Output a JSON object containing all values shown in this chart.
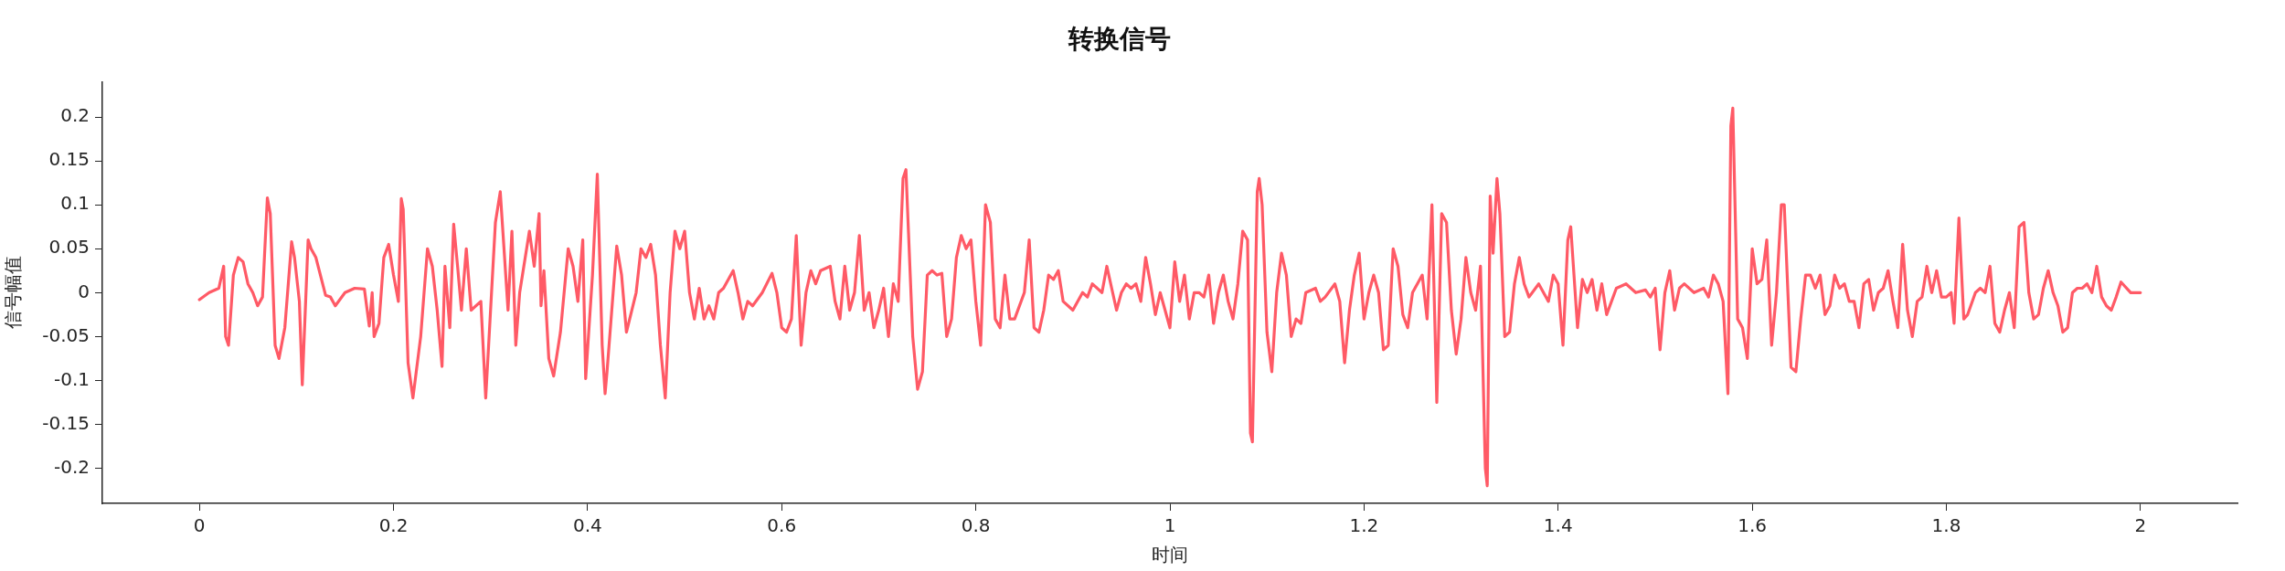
{
  "chart_data": {
    "type": "line",
    "title": "转换信号",
    "xlabel": "时间",
    "ylabel": "信号幅值",
    "xlim": [
      -0.1,
      2.1
    ],
    "xticks": [
      0,
      0.2,
      0.4,
      0.6,
      0.8,
      1,
      1.2,
      1.4,
      1.6,
      1.8,
      2
    ],
    "ylim": [
      -0.24,
      0.24
    ],
    "yticks": [
      -0.2,
      -0.15,
      -0.1,
      -0.05,
      0,
      0.05,
      0.1,
      0.15,
      0.2
    ],
    "grid": false,
    "legend": false,
    "marker": "none",
    "line_style": "solid",
    "series": [
      {
        "color": "#ff5a66",
        "x": [
          0,
          0.01,
          0.02,
          0.025,
          0.027,
          0.03,
          0.035,
          0.04,
          0.045,
          0.05,
          0.055,
          0.06,
          0.065,
          0.07,
          0.073,
          0.078,
          0.082,
          0.088,
          0.095,
          0.098,
          0.103,
          0.106,
          0.112,
          0.115,
          0.12,
          0.13,
          0.135,
          0.14,
          0.15,
          0.16,
          0.17,
          0.175,
          0.178,
          0.18,
          0.185,
          0.19,
          0.195,
          0.2,
          0.205,
          0.208,
          0.21,
          0.215,
          0.22,
          0.228,
          0.235,
          0.24,
          0.245,
          0.25,
          0.253,
          0.258,
          0.262,
          0.266,
          0.27,
          0.275,
          0.28,
          0.29,
          0.295,
          0.305,
          0.31,
          0.318,
          0.322,
          0.326,
          0.33,
          0.34,
          0.345,
          0.35,
          0.352,
          0.355,
          0.36,
          0.365,
          0.372,
          0.38,
          0.385,
          0.39,
          0.395,
          0.398,
          0.405,
          0.41,
          0.415,
          0.418,
          0.42,
          0.43,
          0.435,
          0.44,
          0.45,
          0.455,
          0.46,
          0.465,
          0.47,
          0.475,
          0.48,
          0.485,
          0.49,
          0.495,
          0.5,
          0.505,
          0.51,
          0.515,
          0.52,
          0.525,
          0.53,
          0.535,
          0.54,
          0.55,
          0.555,
          0.56,
          0.565,
          0.57,
          0.58,
          0.59,
          0.595,
          0.6,
          0.605,
          0.61,
          0.615,
          0.62,
          0.625,
          0.63,
          0.635,
          0.64,
          0.65,
          0.655,
          0.66,
          0.665,
          0.67,
          0.675,
          0.68,
          0.685,
          0.69,
          0.695,
          0.7,
          0.705,
          0.71,
          0.715,
          0.72,
          0.725,
          0.728,
          0.735,
          0.74,
          0.745,
          0.75,
          0.755,
          0.76,
          0.765,
          0.77,
          0.775,
          0.78,
          0.785,
          0.79,
          0.795,
          0.8,
          0.805,
          0.81,
          0.815,
          0.82,
          0.825,
          0.83,
          0.835,
          0.84,
          0.85,
          0.855,
          0.86,
          0.865,
          0.87,
          0.875,
          0.88,
          0.885,
          0.89,
          0.9,
          0.91,
          0.915,
          0.92,
          0.93,
          0.935,
          0.94,
          0.945,
          0.95,
          0.955,
          0.96,
          0.965,
          0.97,
          0.975,
          0.98,
          0.985,
          0.99,
          1,
          1.005,
          1.01,
          1.015,
          1.02,
          1.025,
          1.03,
          1.035,
          1.04,
          1.045,
          1.05,
          1.055,
          1.06,
          1.065,
          1.07,
          1.075,
          1.08,
          1.083,
          1.085,
          1.09,
          1.092,
          1.095,
          1.1,
          1.105,
          1.11,
          1.115,
          1.12,
          1.125,
          1.13,
          1.135,
          1.14,
          1.15,
          1.155,
          1.16,
          1.17,
          1.175,
          1.18,
          1.185,
          1.19,
          1.195,
          1.2,
          1.205,
          1.21,
          1.215,
          1.22,
          1.225,
          1.23,
          1.235,
          1.24,
          1.245,
          1.25,
          1.26,
          1.265,
          1.27,
          1.275,
          1.28,
          1.285,
          1.29,
          1.295,
          1.3,
          1.305,
          1.31,
          1.315,
          1.32,
          1.325,
          1.327,
          1.33,
          1.333,
          1.337,
          1.34,
          1.345,
          1.35,
          1.355,
          1.36,
          1.365,
          1.37,
          1.38,
          1.39,
          1.395,
          1.4,
          1.405,
          1.41,
          1.413,
          1.42,
          1.425,
          1.43,
          1.435,
          1.44,
          1.445,
          1.45,
          1.46,
          1.47,
          1.48,
          1.49,
          1.495,
          1.5,
          1.505,
          1.51,
          1.515,
          1.52,
          1.525,
          1.53,
          1.54,
          1.55,
          1.555,
          1.56,
          1.565,
          1.57,
          1.575,
          1.578,
          1.58,
          1.585,
          1.59,
          1.595,
          1.6,
          1.605,
          1.61,
          1.615,
          1.62,
          1.625,
          1.63,
          1.633,
          1.64,
          1.645,
          1.65,
          1.655,
          1.66,
          1.665,
          1.67,
          1.675,
          1.68,
          1.685,
          1.69,
          1.695,
          1.7,
          1.705,
          1.71,
          1.715,
          1.72,
          1.725,
          1.73,
          1.735,
          1.74,
          1.745,
          1.75,
          1.755,
          1.76,
          1.765,
          1.77,
          1.775,
          1.78,
          1.785,
          1.79,
          1.795,
          1.8,
          1.805,
          1.808,
          1.813,
          1.818,
          1.822,
          1.83,
          1.835,
          1.84,
          1.845,
          1.85,
          1.855,
          1.86,
          1.865,
          1.87,
          1.875,
          1.88,
          1.885,
          1.89,
          1.895,
          1.9,
          1.905,
          1.91,
          1.915,
          1.92,
          1.925,
          1.93,
          1.935,
          1.94,
          1.945,
          1.95,
          1.955,
          1.96,
          1.965,
          1.97,
          1.975,
          1.98,
          1.99,
          2
        ],
        "values": [
          -0.008,
          0,
          0.005,
          0.03,
          -0.05,
          -0.06,
          0.02,
          0.04,
          0.035,
          0.01,
          0,
          -0.015,
          -0.005,
          0.108,
          0.09,
          -0.06,
          -0.075,
          -0.04,
          0.058,
          0.04,
          -0.01,
          -0.105,
          0.06,
          0.05,
          0.04,
          -0.003,
          -0.005,
          -0.015,
          0,
          0.005,
          0.004,
          -0.038,
          0,
          -0.05,
          -0.035,
          0.04,
          0.055,
          0.02,
          -0.01,
          0.107,
          0.095,
          -0.08,
          -0.12,
          -0.05,
          0.05,
          0.03,
          -0.02,
          -0.084,
          0.03,
          -0.04,
          0.078,
          0.03,
          -0.02,
          0.05,
          -0.02,
          -0.01,
          -0.12,
          0.08,
          0.115,
          -0.02,
          0.07,
          -0.06,
          0,
          0.07,
          0.03,
          0.09,
          -0.015,
          0.025,
          -0.075,
          -0.095,
          -0.045,
          0.05,
          0.03,
          -0.01,
          0.06,
          -0.098,
          0.02,
          0.135,
          -0.06,
          -0.115,
          -0.09,
          0.053,
          0.02,
          -0.045,
          0,
          0.05,
          0.04,
          0.055,
          0.02,
          -0.06,
          -0.12,
          0,
          0.07,
          0.05,
          0.07,
          0,
          -0.03,
          0.005,
          -0.03,
          -0.015,
          -0.03,
          0,
          0.005,
          0.025,
          0,
          -0.03,
          -0.01,
          -0.015,
          0,
          0.022,
          0,
          -0.04,
          -0.045,
          -0.03,
          0.065,
          -0.06,
          0,
          0.025,
          0.01,
          0.025,
          0.03,
          -0.01,
          -0.03,
          0.03,
          -0.02,
          0,
          0.065,
          -0.02,
          0,
          -0.04,
          -0.02,
          0.005,
          -0.05,
          0.01,
          -0.01,
          0.13,
          0.14,
          -0.05,
          -0.11,
          -0.09,
          0.02,
          0.025,
          0.02,
          0.022,
          -0.05,
          -0.03,
          0.04,
          0.065,
          0.05,
          0.06,
          -0.01,
          -0.06,
          0.1,
          0.08,
          -0.03,
          -0.04,
          0.02,
          -0.03,
          -0.03,
          0,
          0.06,
          -0.04,
          -0.045,
          -0.02,
          0.02,
          0.015,
          0.025,
          -0.01,
          -0.02,
          0,
          -0.005,
          0.01,
          0,
          0.03,
          0.005,
          -0.02,
          0,
          0.01,
          0.005,
          0.01,
          -0.01,
          0.04,
          0.01,
          -0.025,
          0,
          -0.04,
          0.035,
          -0.01,
          0.02,
          -0.03,
          0,
          0,
          -0.005,
          0.02,
          -0.035,
          0,
          0.02,
          -0.01,
          -0.03,
          0.01,
          0.07,
          0.06,
          -0.16,
          -0.17,
          0.115,
          0.13,
          0.1,
          -0.045,
          -0.09,
          0,
          0.045,
          0.02,
          -0.05,
          -0.03,
          -0.035,
          0,
          0.005,
          -0.01,
          -0.005,
          0.01,
          -0.01,
          -0.08,
          -0.02,
          0.02,
          0.045,
          -0.03,
          0,
          0.02,
          0,
          -0.065,
          -0.06,
          0.05,
          0.03,
          -0.025,
          -0.04,
          0,
          0.02,
          -0.03,
          0.1,
          -0.125,
          0.09,
          0.08,
          -0.02,
          -0.07,
          -0.03,
          0.04,
          0,
          -0.02,
          0.03,
          -0.2,
          -0.22,
          0.11,
          0.045,
          0.13,
          0.09,
          -0.05,
          -0.045,
          0.01,
          0.04,
          0.01,
          -0.005,
          0.01,
          -0.01,
          0.02,
          0.01,
          -0.06,
          0.06,
          0.075,
          -0.04,
          0.015,
          0,
          0.015,
          -0.02,
          0.01,
          -0.025,
          0.005,
          0.01,
          0,
          0.003,
          -0.005,
          0.005,
          -0.065,
          0,
          0.025,
          -0.02,
          0.005,
          0.01,
          0,
          0.005,
          -0.005,
          0.02,
          0.01,
          -0.01,
          -0.115,
          0.19,
          0.21,
          -0.03,
          -0.04,
          -0.075,
          0.05,
          0.01,
          0.015,
          0.06,
          -0.06,
          0,
          0.1,
          0.1,
          -0.085,
          -0.09,
          -0.03,
          0.02,
          0.02,
          0.005,
          0.02,
          -0.025,
          -0.015,
          0.02,
          0.005,
          0.01,
          -0.01,
          -0.01,
          -0.04,
          0.01,
          0.015,
          -0.02,
          0,
          0.005,
          0.025,
          -0.01,
          -0.04,
          0.055,
          -0.02,
          -0.05,
          -0.01,
          -0.005,
          0.03,
          0,
          0.025,
          -0.005,
          -0.005,
          0,
          -0.035,
          0.085,
          -0.03,
          -0.025,
          0,
          0.005,
          0,
          0.03,
          -0.035,
          -0.045,
          -0.02,
          0,
          -0.04,
          0.075,
          0.08,
          0,
          -0.03,
          -0.025,
          0.005,
          0.025,
          0,
          -0.015,
          -0.045,
          -0.04,
          0,
          0.005,
          0.005,
          0.01,
          0,
          0.03,
          -0.005,
          -0.015,
          -0.02,
          -0.005,
          0.012,
          0,
          0
        ]
      }
    ]
  }
}
